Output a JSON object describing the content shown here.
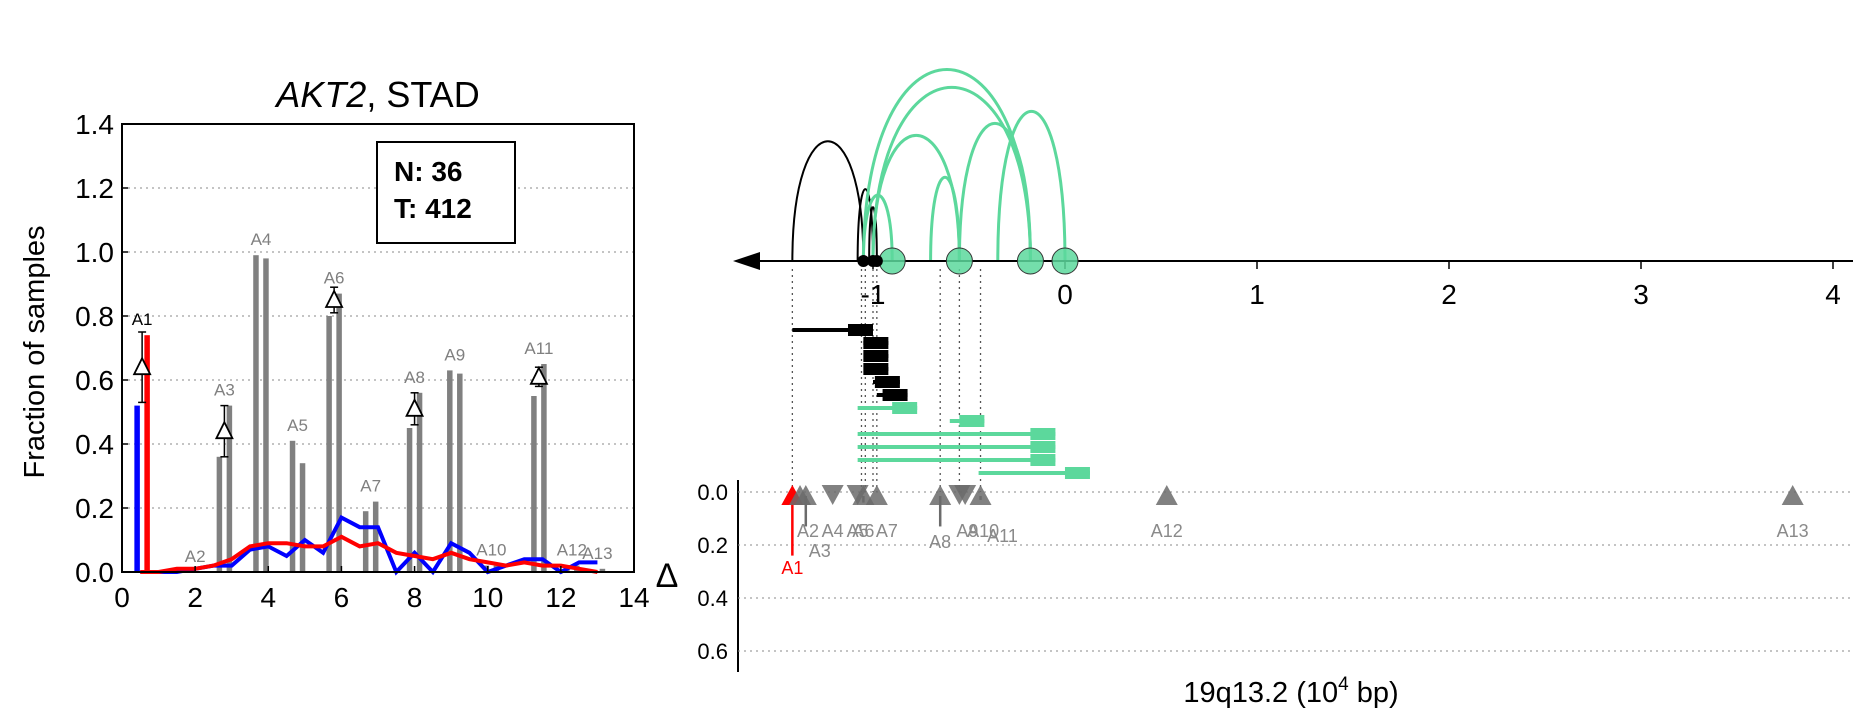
{
  "colors": {
    "normal_line": "#0000ff",
    "tumor_line": "#ff0000",
    "bar": "#808080",
    "arc_black": "#000000",
    "arc_green": "#5cd89c",
    "triangle_grey": "#6b6b6b",
    "triangle_red": "#ff0000"
  },
  "left_panel": {
    "title_gene": "AKT2",
    "title_rest": ", STAD",
    "ylabel": "Fraction of samples",
    "legend_n": "N: 36",
    "legend_t": "T: 412"
  },
  "right_panel": {
    "xlabel_prefix": "19q13.2 (10",
    "xlabel_exp": "4",
    "xlabel_suffix": " bp)",
    "delta_label": "Δ"
  },
  "chart_data": [
    {
      "type": "bar",
      "title": "AKT2, STAD",
      "ylabel": "Fraction of samples",
      "xlim": [
        0,
        14
      ],
      "ylim": [
        0,
        1.4
      ],
      "xticks": [
        0,
        2,
        4,
        6,
        8,
        10,
        12,
        14
      ],
      "yticks": [
        0.0,
        0.2,
        0.4,
        0.6,
        0.8,
        1.0,
        1.2,
        1.4
      ],
      "grid": "horizontal dotted",
      "legend": {
        "placement": "top-right",
        "entries": [
          "N: 36",
          "T: 412"
        ]
      },
      "categories": [
        "A1",
        "A2",
        "A3",
        "A4",
        "A5",
        "A6",
        "A7",
        "A8",
        "A9",
        "A10",
        "A11",
        "A12",
        "A13"
      ],
      "positions": [
        0.55,
        2.0,
        2.8,
        3.8,
        4.8,
        5.8,
        6.8,
        8.0,
        9.1,
        10.1,
        11.4,
        12.3,
        13.0
      ],
      "series": [
        {
          "name": "N",
          "values": [
            0.52,
            0.0,
            0.36,
            0.99,
            0.41,
            0.8,
            0.19,
            0.45,
            0.63,
            0.02,
            0.55,
            0.02,
            0.0
          ]
        },
        {
          "name": "T",
          "values": [
            0.74,
            0.0,
            0.52,
            0.98,
            0.34,
            0.87,
            0.22,
            0.56,
            0.62,
            0.02,
            0.65,
            0.02,
            0.01
          ]
        }
      ],
      "delta": [
        {
          "label": "A1",
          "x": 0.55,
          "y": 0.64,
          "err": 0.11
        },
        {
          "label": "A3",
          "x": 2.8,
          "y": 0.44,
          "err": 0.08
        },
        {
          "label": "A6",
          "x": 5.8,
          "y": 0.85,
          "err": 0.04
        },
        {
          "label": "A8",
          "x": 8.0,
          "y": 0.51,
          "err": 0.05
        },
        {
          "label": "A11",
          "x": 11.4,
          "y": 0.61,
          "err": 0.03
        }
      ],
      "lines": [
        {
          "name": "N",
          "x": [
            0.5,
            1.0,
            1.5,
            2.0,
            2.5,
            3.0,
            3.5,
            4.0,
            4.5,
            5.0,
            5.5,
            6.0,
            6.5,
            7.0,
            7.5,
            8.0,
            8.5,
            9.0,
            9.5,
            10.0,
            10.5,
            11.0,
            11.5,
            12.0,
            12.5,
            13.0
          ],
          "y": [
            0.0,
            0.0,
            0.0,
            0.01,
            0.02,
            0.02,
            0.07,
            0.08,
            0.05,
            0.1,
            0.06,
            0.17,
            0.14,
            0.14,
            0.0,
            0.06,
            0.0,
            0.09,
            0.06,
            0.0,
            0.02,
            0.04,
            0.04,
            0.0,
            0.03,
            0.03
          ]
        },
        {
          "name": "T",
          "x": [
            0.5,
            1.0,
            1.5,
            2.0,
            2.5,
            3.0,
            3.5,
            4.0,
            4.5,
            5.0,
            5.5,
            6.0,
            6.5,
            7.0,
            7.5,
            8.0,
            8.5,
            9.0,
            9.5,
            10.0,
            10.5,
            11.0,
            11.5,
            12.0,
            12.5,
            13.0
          ],
          "y": [
            0.0,
            0.0,
            0.01,
            0.01,
            0.02,
            0.04,
            0.08,
            0.09,
            0.09,
            0.08,
            0.08,
            0.11,
            0.08,
            0.09,
            0.06,
            0.05,
            0.04,
            0.06,
            0.04,
            0.03,
            0.02,
            0.03,
            0.02,
            0.02,
            0.01,
            0.0
          ]
        }
      ]
    },
    {
      "type": "scatter",
      "xlabel": "19q13.2 (10^4 bp)",
      "xlim": [
        -1.7,
        4.1
      ],
      "xticks": [
        -1,
        0,
        1,
        2,
        3,
        4
      ],
      "xtick_labels": [
        "-1",
        "0",
        "1",
        "2",
        "3",
        "4"
      ],
      "delta_ylim": [
        0.0,
        0.7
      ],
      "delta_yticks": [
        0.0,
        0.2,
        0.4,
        0.6
      ],
      "grid": "horizontal dotted",
      "black_nodes": [
        -1.05,
        -1.0,
        -0.98
      ],
      "green_nodes": [
        -0.9,
        -0.55,
        -0.18,
        0.0
      ],
      "black_arcs": [
        {
          "from": -1.42,
          "to": -1.05,
          "height": 1.0
        },
        {
          "from": -1.08,
          "to": -1.0,
          "height": 0.6
        },
        {
          "from": -1.02,
          "to": -0.98,
          "height": 0.45
        }
      ],
      "green_arcs": [
        {
          "from": -1.05,
          "to": -0.18,
          "height": 1.6
        },
        {
          "from": -1.0,
          "to": -0.18,
          "height": 1.45
        },
        {
          "from": -1.0,
          "to": -0.55,
          "height": 1.05
        },
        {
          "from": -0.7,
          "to": -0.55,
          "height": 0.7
        },
        {
          "from": -0.55,
          "to": -0.18,
          "height": 1.15
        },
        {
          "from": -0.35,
          "to": 0.0,
          "height": 1.25
        },
        {
          "from": -1.05,
          "to": -0.9,
          "height": 0.55
        }
      ],
      "black_segments": [
        {
          "start": -1.42,
          "end": -1.0,
          "y": 0
        },
        {
          "start": -1.05,
          "end": -0.92,
          "y": 1
        },
        {
          "start": -1.04,
          "end": -0.92,
          "y": 2
        },
        {
          "start": -1.04,
          "end": -0.92,
          "y": 3
        },
        {
          "start": -1.0,
          "end": -0.86,
          "y": 4
        },
        {
          "start": -0.98,
          "end": -0.82,
          "y": 5
        }
      ],
      "green_segments": [
        {
          "start": -1.08,
          "end": -0.77,
          "y": 6
        },
        {
          "start": -0.6,
          "end": -0.42,
          "y": 7
        },
        {
          "start": -1.08,
          "end": -0.05,
          "y": 8
        },
        {
          "start": -1.08,
          "end": -0.05,
          "y": 9
        },
        {
          "start": -1.08,
          "end": -0.05,
          "y": 10
        },
        {
          "start": -0.45,
          "end": 0.13,
          "y": 11
        }
      ],
      "triangles": [
        {
          "label": "A1",
          "x": -1.42,
          "y": 0.0,
          "dir": "up",
          "color": "red",
          "delta": 0.24
        },
        {
          "label": "A2",
          "x": -1.38,
          "y": 0.0,
          "dir": "up",
          "color": "grey",
          "delta": 0.0
        },
        {
          "label": "A3",
          "x": -1.35,
          "y": 0.0,
          "dir": "up",
          "color": "grey",
          "delta": 0.13
        },
        {
          "label": "A4",
          "x": -1.21,
          "y": 0.0,
          "dir": "down",
          "color": "grey",
          "delta": 0.0
        },
        {
          "label": "A5",
          "x": -1.08,
          "y": 0.0,
          "dir": "down",
          "color": "grey",
          "delta": 0.0
        },
        {
          "label": "A6",
          "x": -1.05,
          "y": 0.0,
          "dir": "up",
          "color": "grey",
          "delta": 0.04
        },
        {
          "label": "A7",
          "x": -0.98,
          "y": 0.0,
          "dir": "up",
          "color": "grey",
          "delta": 0.0
        },
        {
          "label": "A8",
          "x": -0.65,
          "y": 0.0,
          "dir": "up",
          "color": "grey",
          "delta": 0.13
        },
        {
          "label": "A9",
          "x": -0.55,
          "y": 0.0,
          "dir": "down",
          "color": "grey",
          "delta": 0.0
        },
        {
          "label": "A10",
          "x": -0.52,
          "y": 0.0,
          "dir": "down",
          "color": "grey",
          "delta": 0.0
        },
        {
          "label": "A11",
          "x": -0.44,
          "y": 0.0,
          "dir": "up",
          "color": "grey",
          "delta": 0.03
        },
        {
          "label": "A12",
          "x": 0.53,
          "y": 0.0,
          "dir": "up",
          "color": "grey",
          "delta": 0.0
        },
        {
          "label": "A13",
          "x": 3.79,
          "y": 0.0,
          "dir": "up",
          "color": "grey",
          "delta": 0.0
        }
      ]
    }
  ]
}
